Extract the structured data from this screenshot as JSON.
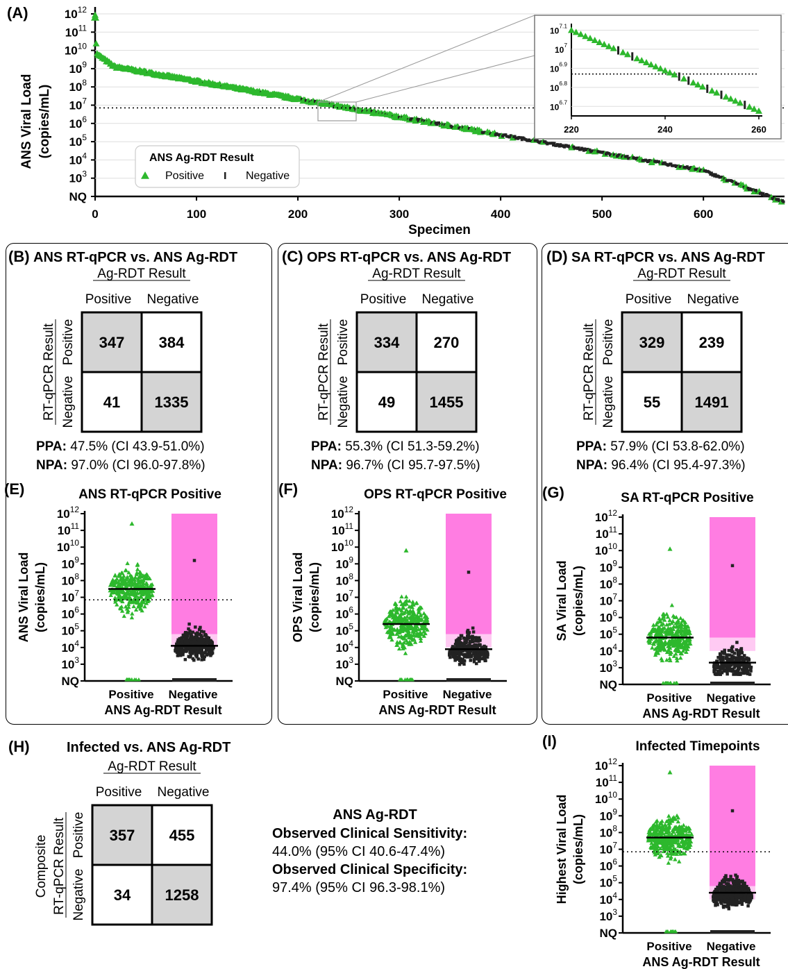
{
  "panels": {
    "A": {
      "letter": "(A)",
      "ylabel1": "ANS Viral Load",
      "ylabel2": "(copies/mL)",
      "xlabel": "Specimen",
      "legend_title": "ANS Ag-RDT Result",
      "legend_pos": "Positive",
      "legend_neg": "Negative",
      "yticks": [
        "NQ",
        "3",
        "4",
        "5",
        "6",
        "7",
        "8",
        "9",
        "10",
        "11",
        "12"
      ],
      "xticks": [
        "0",
        "100",
        "200",
        "300",
        "400",
        "500",
        "600"
      ],
      "inset_yticks": [
        "6.7",
        "6.8",
        "6.9",
        "7",
        "7.1"
      ],
      "inset_xticks": [
        "220",
        "240",
        "260"
      ]
    },
    "B": {
      "letter": "(B)",
      "title": "ANS RT-qPCR vs. ANS Ag-RDT",
      "col_header": "Ag-RDT Result",
      "col_pos": "Positive",
      "col_neg": "Negative",
      "row_header": "RT-qPCR Result",
      "row_pos": "Positive",
      "row_neg": "Negative",
      "cells": [
        "347",
        "384",
        "41",
        "1335"
      ],
      "ppa_label": "PPA:",
      "ppa_value": "47.5% (CI 43.9-51.0%)",
      "npa_label": "NPA:",
      "npa_value": "97.0% (CI 96.0-97.8%)"
    },
    "C": {
      "letter": "(C)",
      "title": "OPS RT-qPCR vs. ANS Ag-RDT",
      "col_header": "Ag-RDT Result",
      "col_pos": "Positive",
      "col_neg": "Negative",
      "row_header": "RT-qPCR Result",
      "row_pos": "Positive",
      "row_neg": "Negative",
      "cells": [
        "334",
        "270",
        "49",
        "1455"
      ],
      "ppa_label": "PPA:",
      "ppa_value": "55.3% (CI 51.3-59.2%)",
      "npa_label": "NPA:",
      "npa_value": "96.7% (CI 95.7-97.5%)"
    },
    "D": {
      "letter": "(D)",
      "title": "SA RT-qPCR vs. ANS Ag-RDT",
      "col_header": "Ag-RDT Result",
      "col_pos": "Positive",
      "col_neg": "Negative",
      "row_header": "RT-qPCR Result",
      "row_pos": "Positive",
      "row_neg": "Negative",
      "cells": [
        "329",
        "239",
        "55",
        "1491"
      ],
      "ppa_label": "PPA:",
      "ppa_value": "57.9% (CI 53.8-62.0%)",
      "npa_label": "NPA:",
      "npa_value": "96.4% (CI 95.4-97.3%)"
    },
    "E": {
      "letter": "(E)",
      "title": "ANS RT-qPCR Positive",
      "ylabel1": "ANS Viral Load",
      "ylabel2": "(copies/mL)",
      "xcat": [
        "Positive",
        "Negative"
      ],
      "xlabel": "ANS Ag-RDT Result"
    },
    "F": {
      "letter": "(F)",
      "title": "OPS RT-qPCR Positive",
      "ylabel1": "OPS Viral Load",
      "ylabel2": "(copies/mL)",
      "xcat": [
        "Positive",
        "Negative"
      ],
      "xlabel": "ANS Ag-RDT Result"
    },
    "G": {
      "letter": "(G)",
      "title": "SA RT-qPCR Positive",
      "ylabel1": "SA Viral Load",
      "ylabel2": "(copies/mL)",
      "xcat": [
        "Positive",
        "Negative"
      ],
      "xlabel": "ANS Ag-RDT Result"
    },
    "H": {
      "letter": "(H)",
      "title": "Infected vs. ANS Ag-RDT",
      "col_header": "Ag-RDT Result",
      "col_pos": "Positive",
      "col_neg": "Negative",
      "row_header1": "Composite",
      "row_header2": "RT-qPCR Result",
      "row_pos": "Positive",
      "row_neg": "Negative",
      "cells": [
        "357",
        "455",
        "34",
        "1258"
      ],
      "summary_title": "ANS Ag-RDT",
      "sens_label": "Observed Clinical Sensitivity:",
      "sens_value": "44.0% (95% CI 40.6-47.4%)",
      "spec_label": "Observed Clinical Specificity:",
      "spec_value": "97.4% (95% CI 96.3-98.1%)"
    },
    "I": {
      "letter": "(I)",
      "title": "Infected Timepoints",
      "ylabel1": "Highest Viral Load",
      "ylabel2": "(copies/mL)",
      "xcat": [
        "Positive",
        "Negative"
      ],
      "xlabel": "ANS Ag-RDT Result"
    }
  },
  "colors": {
    "positive": "#2db82d",
    "negative": "#222222",
    "shade": "#ff66dd",
    "cell_gray": "#d4d4d4"
  },
  "chart_data": [
    {
      "panel": "A",
      "type": "scatter",
      "ylim": [
        "NQ",
        "1e12"
      ],
      "xlim": [
        0,
        680
      ],
      "threshold_log10": 6.85,
      "series": [
        {
          "name": "Positive",
          "values_log10_by_rank": [
            [
              0,
              12
            ],
            [
              5,
              9.8
            ],
            [
              30,
              9.1
            ],
            [
              100,
              8.4
            ],
            [
              200,
              7.2
            ],
            [
              260,
              6.65
            ],
            [
              300,
              6.3
            ],
            [
              400,
              5.6
            ],
            [
              500,
              4.8
            ],
            [
              600,
              4.0
            ],
            [
              678,
              2.6
            ]
          ]
        },
        {
          "name": "Negative",
          "values_log10_by_rank": [
            [
              230,
              7.0
            ],
            [
              300,
              6.3
            ],
            [
              400,
              5.6
            ],
            [
              500,
              4.8
            ],
            [
              600,
              4.0
            ],
            [
              678,
              2.6
            ]
          ]
        }
      ]
    },
    {
      "panel": "E",
      "type": "scatter",
      "ylim": [
        "NQ",
        "1e12"
      ],
      "medians_log10": {
        "Positive": 7.5,
        "Negative": 4.1
      },
      "threshold_log10": 6.85
    },
    {
      "panel": "F",
      "type": "scatter",
      "ylim": [
        "NQ",
        "1e12"
      ],
      "medians_log10": {
        "Positive": 5.4,
        "Negative": 3.9
      }
    },
    {
      "panel": "G",
      "type": "scatter",
      "ylim": [
        "NQ",
        "1e12"
      ],
      "medians_log10": {
        "Positive": 4.8,
        "Negative": 3.3
      }
    },
    {
      "panel": "I",
      "type": "scatter",
      "ylim": [
        "NQ",
        "1e12"
      ],
      "medians_log10": {
        "Positive": 7.7,
        "Negative": 4.4
      },
      "threshold_log10": 6.85
    }
  ]
}
